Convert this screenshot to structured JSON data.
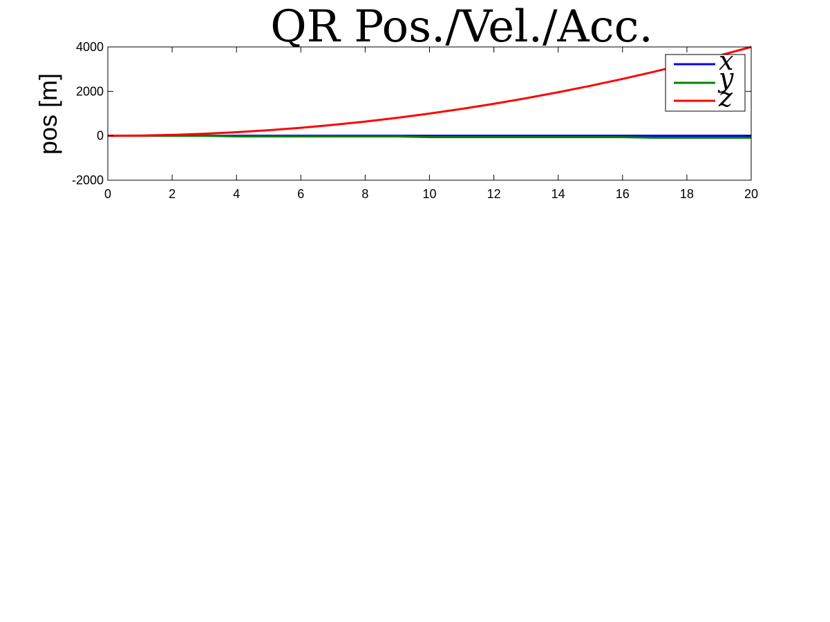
{
  "chart_data": {
    "type": "line",
    "title": "QR Pos./Vel./Acc.",
    "xlabel": "",
    "ylabel": "pos [m]",
    "xlim": [
      0,
      20
    ],
    "ylim": [
      -2000,
      4000
    ],
    "xticks": [
      0,
      2,
      4,
      6,
      8,
      10,
      12,
      14,
      16,
      18,
      20
    ],
    "yticks": [
      -2000,
      0,
      2000,
      4000
    ],
    "xtick_labels": [
      "0",
      "2",
      "4",
      "6",
      "8",
      "10",
      "12",
      "14",
      "16",
      "18",
      "20"
    ],
    "ytick_labels": [
      "-2000",
      "0",
      "2000",
      "4000"
    ],
    "grid": false,
    "legend_position": "top-right",
    "x": [
      0,
      1,
      2,
      3,
      4,
      5,
      6,
      7,
      8,
      9,
      10,
      11,
      12,
      13,
      14,
      15,
      16,
      17,
      18,
      19,
      20
    ],
    "series": [
      {
        "name": "x",
        "color": "#0000ff",
        "values": [
          0,
          0,
          0,
          0,
          0,
          0,
          0,
          0,
          0,
          0,
          0,
          0,
          0,
          0,
          0,
          0,
          0,
          0,
          0,
          0,
          0
        ]
      },
      {
        "name": "y",
        "color": "#008000",
        "values": [
          0,
          0,
          0,
          0,
          -30,
          -30,
          -30,
          -30,
          -30,
          -30,
          -60,
          -60,
          -60,
          -60,
          -60,
          -60,
          -60,
          -90,
          -90,
          -90,
          -90
        ]
      },
      {
        "name": "z",
        "color": "#ff0000",
        "values": [
          0,
          10,
          40,
          90,
          160,
          250,
          360,
          490,
          640,
          810,
          1000,
          1210,
          1440,
          1690,
          1960,
          2250,
          2560,
          2890,
          3240,
          3610,
          4000
        ]
      }
    ]
  }
}
